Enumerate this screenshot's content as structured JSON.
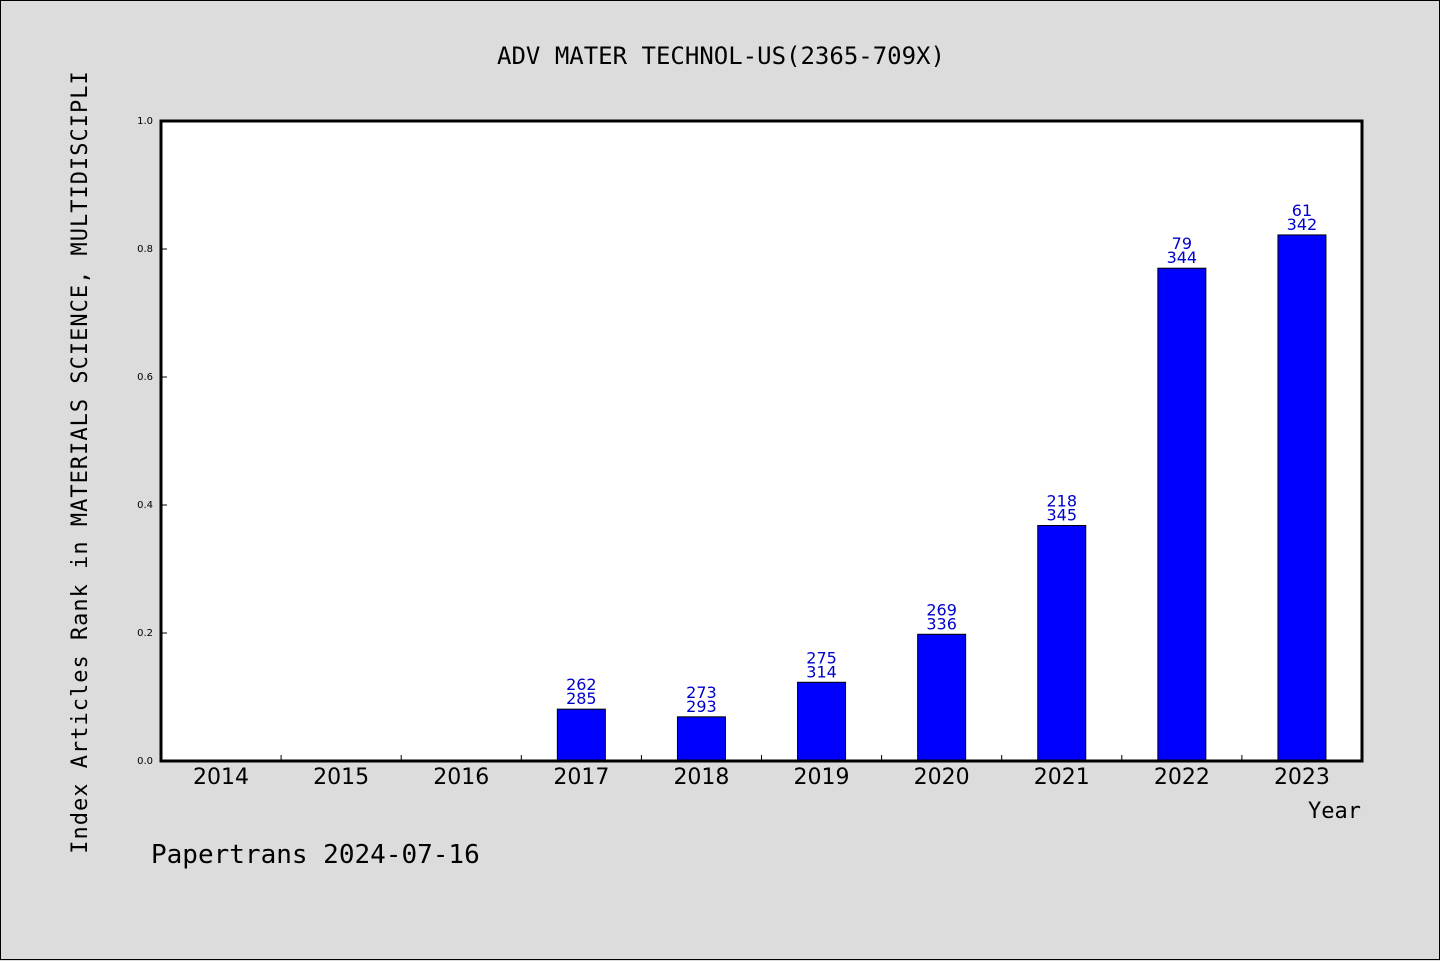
{
  "chart_data": {
    "type": "bar",
    "title": "ADV MATER TECHNOL-US(2365-709X)",
    "xlabel": "Year",
    "ylabel": "Index Articles Rank in MATERIALS SCIENCE, MULTIDISCIPLI",
    "categories": [
      "2014",
      "2015",
      "2016",
      "2017",
      "2018",
      "2019",
      "2020",
      "2021",
      "2022",
      "2023"
    ],
    "values": [
      null,
      null,
      null,
      0.081,
      0.069,
      0.123,
      0.198,
      0.368,
      0.77,
      0.822
    ],
    "labels_top": [
      "",
      "",
      "",
      "262",
      "273",
      "275",
      "269",
      "218",
      "79",
      "61"
    ],
    "labels_bottom": [
      "",
      "",
      "",
      "285",
      "293",
      "314",
      "336",
      "345",
      "344",
      "342"
    ],
    "ylim": [
      0,
      1.0
    ],
    "yticks": [
      "0.0",
      "0.2",
      "0.4",
      "0.6",
      "0.8",
      "1.0"
    ],
    "bar_color": "#0000ff",
    "label_color": "#0000cc",
    "grid": false
  },
  "footer": "Papertrans 2024-07-16"
}
